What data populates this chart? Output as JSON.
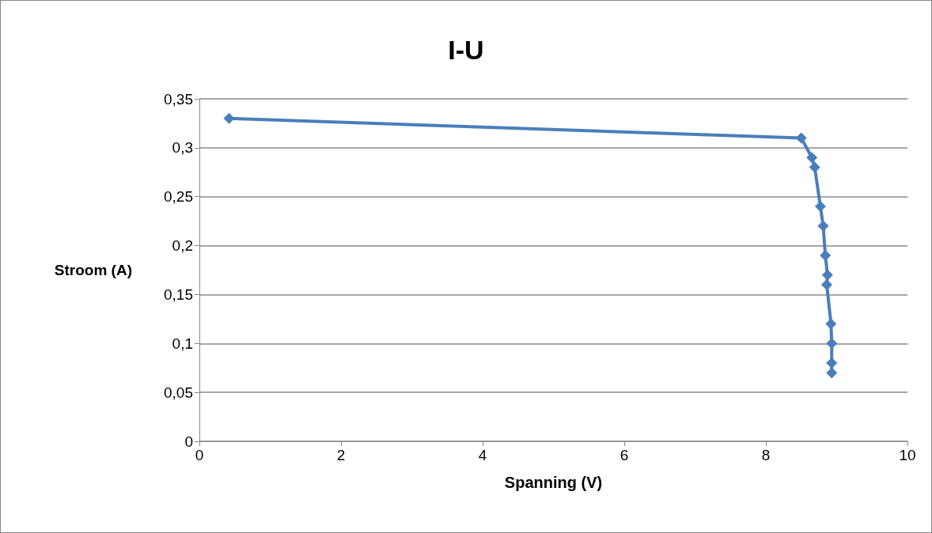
{
  "chart_data": {
    "type": "line",
    "title": "I-U",
    "xlabel": "Spanning (V)",
    "ylabel": "Stroom (A)",
    "series": [
      {
        "color": "#4a7ebb",
        "x": [
          0.42,
          8.5,
          8.65,
          8.69,
          8.77,
          8.81,
          8.84,
          8.87,
          8.86,
          8.92,
          8.93,
          8.93,
          8.93
        ],
        "values": [
          0.33,
          0.31,
          0.29,
          0.28,
          0.24,
          0.22,
          0.19,
          0.17,
          0.16,
          0.12,
          0.1,
          0.08,
          0.07
        ]
      }
    ],
    "xlim": [
      0,
      10
    ],
    "xticks": [
      0,
      2,
      4,
      6,
      8,
      10
    ],
    "ylim": [
      0,
      0.35
    ],
    "yticks": [
      {
        "value": 0,
        "label": "0"
      },
      {
        "value": 0.05,
        "label": "0,05"
      },
      {
        "value": 0.1,
        "label": "0,1"
      },
      {
        "value": 0.15,
        "label": "0,15"
      },
      {
        "value": 0.2,
        "label": "0,2"
      },
      {
        "value": 0.25,
        "label": "0,25"
      },
      {
        "value": 0.3,
        "label": "0,3"
      },
      {
        "value": 0.35,
        "label": "0,35"
      }
    ],
    "grid": "y",
    "marker": "diamond",
    "line_style": "solid"
  }
}
